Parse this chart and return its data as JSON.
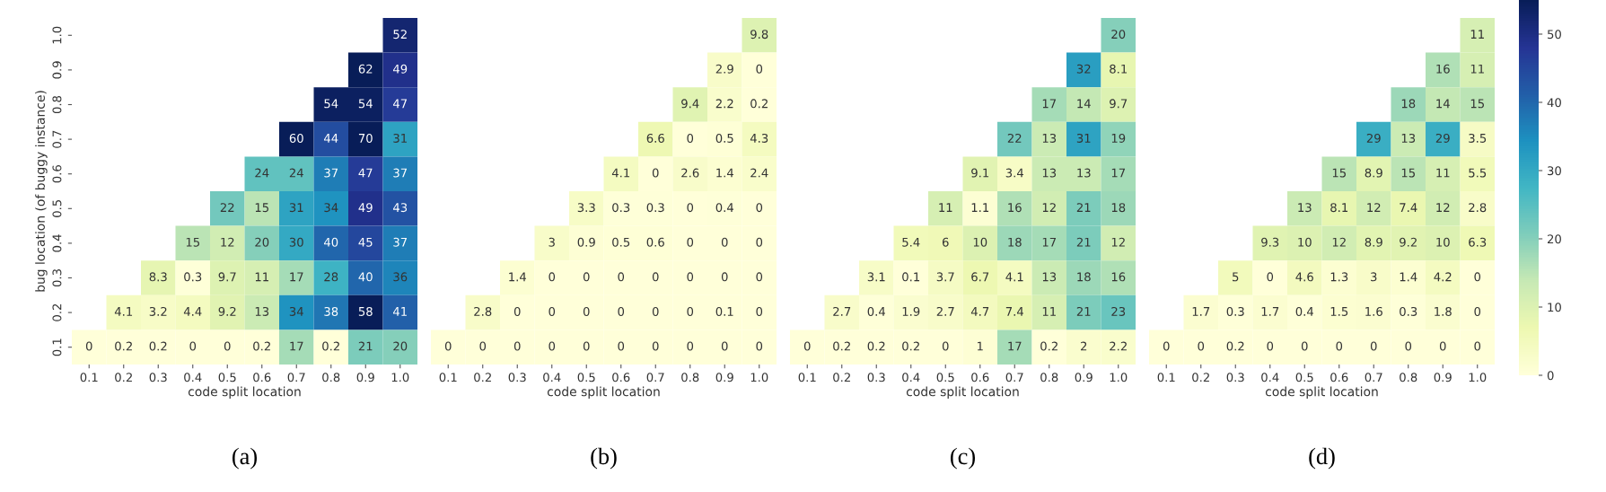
{
  "chart_data": [
    {
      "type": "heatmap",
      "title": "(a)",
      "xlabel": "code split location",
      "ylabel": "bug location (of buggy instance)",
      "data_labels": true,
      "categories": [
        "0.1",
        "0.2",
        "0.3",
        "0.4",
        "0.5",
        "0.6",
        "0.7",
        "0.8",
        "0.9",
        "1.0"
      ],
      "y_categories": [
        "1.0",
        "0.9",
        "0.8",
        "0.7",
        "0.6",
        "0.5",
        "0.4",
        "0.3",
        "0.2",
        "0.1"
      ],
      "cells": [
        [
          null,
          null,
          null,
          null,
          null,
          null,
          null,
          null,
          null,
          52
        ],
        [
          null,
          null,
          null,
          null,
          null,
          null,
          null,
          null,
          62,
          49
        ],
        [
          null,
          null,
          null,
          null,
          null,
          null,
          null,
          54,
          54,
          47
        ],
        [
          null,
          null,
          null,
          null,
          null,
          null,
          60,
          44,
          70,
          31
        ],
        [
          null,
          null,
          null,
          null,
          null,
          24,
          24,
          37,
          47,
          37
        ],
        [
          null,
          null,
          null,
          null,
          22,
          15,
          31,
          34,
          49,
          43
        ],
        [
          null,
          null,
          null,
          15,
          12,
          20,
          30,
          40,
          45,
          37
        ],
        [
          null,
          null,
          8.3,
          0.3,
          9.7,
          11,
          17,
          28,
          40,
          36
        ],
        [
          null,
          4.1,
          3.2,
          4.4,
          9.2,
          13,
          34,
          38,
          58,
          41
        ],
        [
          0,
          0.2,
          0.2,
          0,
          0,
          0.2,
          17,
          0.2,
          21,
          20
        ]
      ]
    },
    {
      "type": "heatmap",
      "title": "(b)",
      "xlabel": "code split location",
      "data_labels": true,
      "tick_labels": "x",
      "categories": [
        "0.1",
        "0.2",
        "0.3",
        "0.4",
        "0.5",
        "0.6",
        "0.7",
        "0.8",
        "0.9",
        "1.0"
      ],
      "y_categories": [
        "1.0",
        "0.9",
        "0.8",
        "0.7",
        "0.6",
        "0.5",
        "0.4",
        "0.3",
        "0.2",
        "0.1"
      ],
      "cells": [
        [
          null,
          null,
          null,
          null,
          null,
          null,
          null,
          null,
          null,
          9.8
        ],
        [
          null,
          null,
          null,
          null,
          null,
          null,
          null,
          null,
          2.9,
          0
        ],
        [
          null,
          null,
          null,
          null,
          null,
          null,
          null,
          9.4,
          2.2,
          0.2
        ],
        [
          null,
          null,
          null,
          null,
          null,
          null,
          6.6,
          0,
          0.5,
          4.3
        ],
        [
          null,
          null,
          null,
          null,
          null,
          4.1,
          0,
          2.6,
          1.4,
          2.4
        ],
        [
          null,
          null,
          null,
          null,
          3.3,
          0.3,
          0.3,
          0,
          0.4,
          0
        ],
        [
          null,
          null,
          null,
          3,
          0.9,
          0.5,
          0.6,
          0,
          0,
          0
        ],
        [
          null,
          null,
          1.4,
          0,
          0,
          0,
          0,
          0,
          0,
          0
        ],
        [
          null,
          2.8,
          0,
          0,
          0,
          0,
          0,
          0,
          0.1,
          0
        ],
        [
          0,
          0,
          0,
          0,
          0,
          0,
          0,
          0,
          0,
          0
        ]
      ]
    },
    {
      "type": "heatmap",
      "title": "(c)",
      "xlabel": "code split location",
      "data_labels": true,
      "tick_labels": "x",
      "categories": [
        "0.1",
        "0.2",
        "0.3",
        "0.4",
        "0.5",
        "0.6",
        "0.7",
        "0.8",
        "0.9",
        "1.0"
      ],
      "y_categories": [
        "1.0",
        "0.9",
        "0.8",
        "0.7",
        "0.6",
        "0.5",
        "0.4",
        "0.3",
        "0.2",
        "0.1"
      ],
      "cells": [
        [
          null,
          null,
          null,
          null,
          null,
          null,
          null,
          null,
          null,
          20
        ],
        [
          null,
          null,
          null,
          null,
          null,
          null,
          null,
          null,
          32,
          8.1
        ],
        [
          null,
          null,
          null,
          null,
          null,
          null,
          null,
          17,
          14,
          9.7
        ],
        [
          null,
          null,
          null,
          null,
          null,
          null,
          22,
          13,
          31,
          19
        ],
        [
          null,
          null,
          null,
          null,
          null,
          9.1,
          3.4,
          13,
          13,
          17
        ],
        [
          null,
          null,
          null,
          null,
          11,
          1.1,
          16,
          12,
          21,
          18
        ],
        [
          null,
          null,
          null,
          5.4,
          6,
          10,
          18,
          17,
          21,
          12
        ],
        [
          null,
          null,
          3.1,
          0.1,
          3.7,
          6.7,
          4.1,
          13,
          18,
          16
        ],
        [
          null,
          2.7,
          0.4,
          1.9,
          2.7,
          4.7,
          7.4,
          11,
          21,
          23
        ],
        [
          0,
          0.2,
          0.2,
          0.2,
          0,
          1,
          17,
          0.2,
          2,
          2.2
        ]
      ]
    },
    {
      "type": "heatmap",
      "title": "(d)",
      "xlabel": "code split location",
      "data_labels": true,
      "tick_labels": "x",
      "categories": [
        "0.1",
        "0.2",
        "0.3",
        "0.4",
        "0.5",
        "0.6",
        "0.7",
        "0.8",
        "0.9",
        "1.0"
      ],
      "y_categories": [
        "1.0",
        "0.9",
        "0.8",
        "0.7",
        "0.6",
        "0.5",
        "0.4",
        "0.3",
        "0.2",
        "0.1"
      ],
      "clim": [
        0,
        55
      ],
      "cticks": [
        0,
        10,
        20,
        30,
        40,
        50
      ],
      "cells": [
        [
          null,
          null,
          null,
          null,
          null,
          null,
          null,
          null,
          null,
          11
        ],
        [
          null,
          null,
          null,
          null,
          null,
          null,
          null,
          null,
          16,
          11
        ],
        [
          null,
          null,
          null,
          null,
          null,
          null,
          null,
          18,
          14,
          15
        ],
        [
          null,
          null,
          null,
          null,
          null,
          null,
          29,
          13,
          29,
          3.5
        ],
        [
          null,
          null,
          null,
          null,
          null,
          15,
          8.9,
          15,
          11,
          5.5
        ],
        [
          null,
          null,
          null,
          null,
          13,
          8.1,
          12,
          7.4,
          12,
          2.8
        ],
        [
          null,
          null,
          null,
          9.3,
          10,
          12,
          8.9,
          9.2,
          10,
          6.3
        ],
        [
          null,
          null,
          5,
          0,
          4.6,
          1.3,
          3,
          1.4,
          4.2,
          0
        ],
        [
          null,
          1.7,
          0.3,
          1.7,
          0.4,
          1.5,
          1.6,
          0.3,
          1.8,
          0
        ],
        [
          0,
          0,
          0.2,
          0,
          0,
          0,
          0,
          0,
          0,
          0
        ]
      ]
    }
  ]
}
